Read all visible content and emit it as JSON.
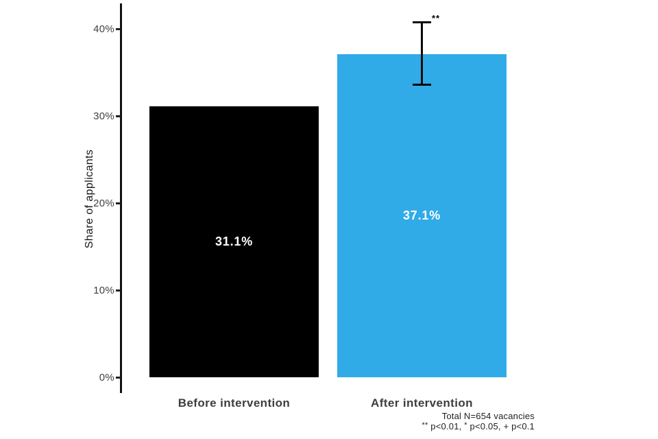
{
  "chart_data": {
    "type": "bar",
    "title": "",
    "xlabel": "",
    "ylabel": "Share of applicants",
    "categories": [
      "Before intervention",
      "After intervention"
    ],
    "values": [
      31.1,
      37.1
    ],
    "bar_labels": [
      "31.1%",
      "37.1%"
    ],
    "bar_colors": [
      "#000000",
      "#30ABE8"
    ],
    "value_label_color": "#ffffff",
    "yticks": [
      0,
      10,
      20,
      30,
      40
    ],
    "ytick_labels": [
      "0%",
      "10%",
      "20%",
      "30%",
      "40%"
    ],
    "ylim": [
      0,
      43.5
    ],
    "grid": false,
    "legend": null,
    "error_bar": {
      "bar_index": 1,
      "low": 33.5,
      "high": 40.9,
      "significance": "**"
    }
  },
  "footnote": {
    "line1": "Total N=654 vacancies",
    "line2": {
      "sig2": "**",
      "p1": "p<0.01,",
      "sig1": "*",
      "p2": "p<0.05, + p<0.1"
    }
  }
}
